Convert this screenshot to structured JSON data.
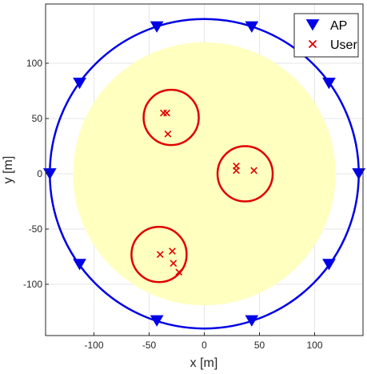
{
  "chart_data": {
    "type": "scatter",
    "xlabel": "x [m]",
    "ylabel": "y [m]",
    "xlim": [
      -145,
      145
    ],
    "ylim": [
      -145,
      145
    ],
    "xticks": [
      -100,
      -50,
      0,
      50,
      100
    ],
    "yticks": [
      -100,
      -50,
      0,
      50,
      100
    ],
    "grid": true,
    "legend_position": "top-right",
    "colors": {
      "ap": "#0000e6",
      "user": "#e00000",
      "coverage_fill": "#ffffc0",
      "grid": "#e6e6e6",
      "axis": "#262626"
    },
    "coverage_disk": {
      "center": [
        0,
        0
      ],
      "radius": 119
    },
    "boundary_circle": {
      "center": [
        0,
        0
      ],
      "radius": 140
    },
    "series": [
      {
        "name": "AP",
        "marker": "triangle-down",
        "points": [
          [
            140,
            0
          ],
          [
            113,
            82
          ],
          [
            43,
            133
          ],
          [
            -43,
            133
          ],
          [
            -113,
            82
          ],
          [
            -140,
            0
          ],
          [
            -113,
            -82
          ],
          [
            -43,
            -133
          ],
          [
            43,
            -133
          ],
          [
            113,
            -82
          ]
        ]
      },
      {
        "name": "User",
        "marker": "x",
        "points": [
          [
            -37,
            55
          ],
          [
            -34,
            55
          ],
          [
            -33,
            36
          ],
          [
            29,
            7
          ],
          [
            29,
            3
          ],
          [
            45,
            3
          ],
          [
            -40,
            -73
          ],
          [
            -29,
            -70
          ],
          [
            -28,
            -81
          ],
          [
            -23,
            -89
          ]
        ]
      }
    ],
    "cluster_circles": [
      {
        "center": [
          -30,
          51
        ],
        "radius": 25
      },
      {
        "center": [
          37,
          0
        ],
        "radius": 25
      },
      {
        "center": [
          -41,
          -73
        ],
        "radius": 25
      }
    ]
  }
}
